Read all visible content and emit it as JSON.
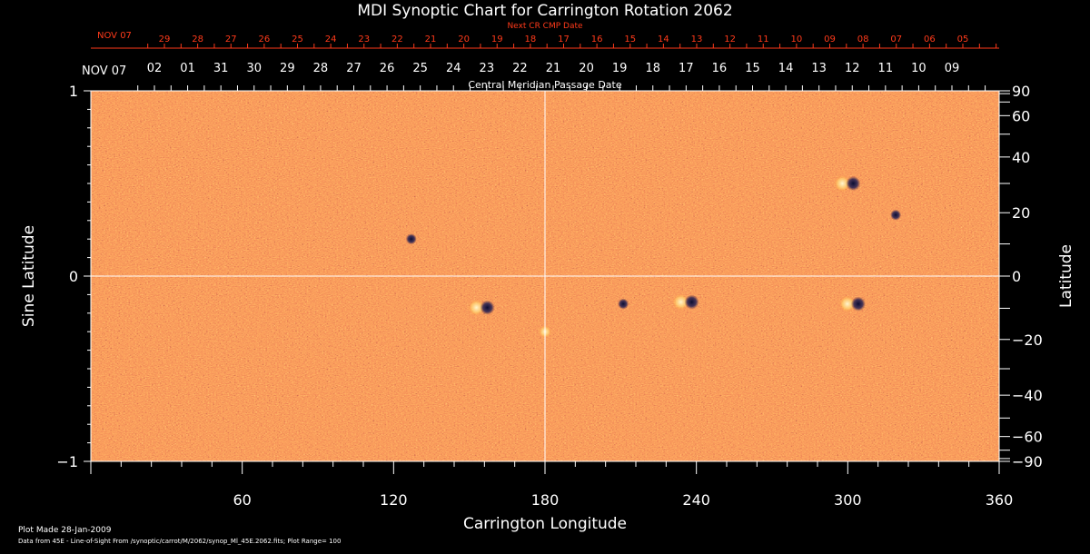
{
  "title": "MDI Synoptic Chart for Carrington Rotation 2062",
  "next_cr": {
    "label": "Next CR CMP Date",
    "start": "NOV 07",
    "ticks": [
      "29",
      "28",
      "27",
      "26",
      "25",
      "24",
      "23",
      "22",
      "21",
      "20",
      "19",
      "18",
      "17",
      "16",
      "15",
      "14",
      "13",
      "12",
      "11",
      "10",
      "09",
      "08",
      "07",
      "06",
      "05"
    ],
    "color": "#ff3a1a"
  },
  "cmp": {
    "label": "Central Meridian Passage Date",
    "start": "NOV 07",
    "ticks": [
      "02",
      "01",
      "31",
      "30",
      "29",
      "28",
      "27",
      "26",
      "25",
      "24",
      "23",
      "22",
      "21",
      "20",
      "19",
      "18",
      "17",
      "16",
      "15",
      "14",
      "13",
      "12",
      "11",
      "10",
      "09"
    ]
  },
  "chart_data": {
    "type": "heatmap",
    "title": "MDI Synoptic Chart for Carrington Rotation 2062",
    "xlabel": "Carrington Longitude",
    "ylabel_left": "Sine Latitude",
    "ylabel_right": "Latitude",
    "xlim": [
      0,
      360
    ],
    "ylim": [
      -1,
      1
    ],
    "x_ticks": [
      60,
      120,
      180,
      240,
      300,
      360
    ],
    "y_ticks_left": [
      {
        "value": 1,
        "label": "1"
      },
      {
        "value": 0,
        "label": "0"
      },
      {
        "value": -1,
        "label": "−1"
      }
    ],
    "y_ticks_right": [
      {
        "lat": 90,
        "label": "90"
      },
      {
        "lat": 60,
        "label": "60"
      },
      {
        "lat": 40,
        "label": "40"
      },
      {
        "lat": 20,
        "label": "20"
      },
      {
        "lat": 0,
        "label": "0"
      },
      {
        "lat": -20,
        "label": "−20"
      },
      {
        "lat": -40,
        "label": "−40"
      },
      {
        "lat": -60,
        "label": "−60"
      },
      {
        "lat": -90,
        "label": "−90"
      }
    ],
    "crosshair": {
      "x": 180,
      "y": 0
    },
    "colormap": [
      "#14184a",
      "#8a1c12",
      "#e8441a",
      "#ff6a1e",
      "#ff9a3a",
      "#ffe8a0"
    ],
    "active_regions": [
      {
        "lon": 127,
        "sinlat": 0.2,
        "polarity": "negative"
      },
      {
        "lon": 155,
        "sinlat": -0.17,
        "polarity": "bipolar"
      },
      {
        "lon": 236,
        "sinlat": -0.14,
        "polarity": "bipolar"
      },
      {
        "lon": 302,
        "sinlat": -0.15,
        "polarity": "bipolar"
      },
      {
        "lon": 300,
        "sinlat": 0.5,
        "polarity": "bipolar"
      },
      {
        "lon": 319,
        "sinlat": 0.33,
        "polarity": "negative"
      },
      {
        "lon": 211,
        "sinlat": -0.15,
        "polarity": "negative"
      },
      {
        "lon": 180,
        "sinlat": -0.3,
        "polarity": "positive"
      }
    ]
  },
  "footer": {
    "line1": "Plot Made 28-Jan-2009",
    "line2": "Data from 45E - Line-of-Sight From /synoptic/carrot/M/2062/synop_Ml_45E.2062.fits; Plot Range= 100"
  }
}
